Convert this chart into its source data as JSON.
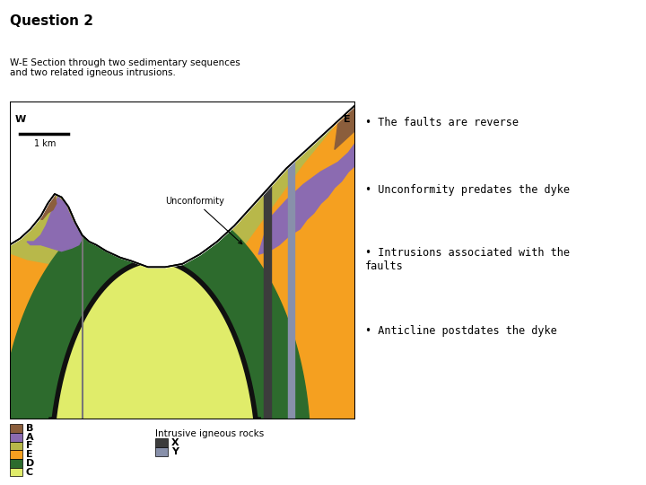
{
  "title": "Question 2",
  "subtitle_line1": "W-E Section through two sedimentary sequences",
  "subtitle_line2": "and two related igneous intrusions.",
  "bullet_points": [
    "• The faults are reverse",
    "• Unconformity predates the dyke",
    "• Intrusions associated with the\nfaults",
    "• Anticline postdates the dyke"
  ],
  "colors": {
    "B": "#8B5E3C",
    "A": "#8B6BB1",
    "F": "#B8B84A",
    "E": "#F5A020",
    "D": "#2D6B2D",
    "C": "#E0EC6A",
    "X": "#3C3C3C",
    "Y": "#8890AA",
    "background": "#FFFFFF",
    "fault_line": "#777777",
    "black_ring": "#101010"
  },
  "legend_items": [
    {
      "label": "B",
      "color": "#8B5E3C"
    },
    {
      "label": "A",
      "color": "#8B6BB1"
    },
    {
      "label": "F",
      "color": "#B8B84A"
    },
    {
      "label": "E",
      "color": "#F5A020"
    },
    {
      "label": "D",
      "color": "#2D6B2D"
    },
    {
      "label": "C",
      "color": "#E0EC6A"
    }
  ],
  "intrusive_legend": [
    {
      "label": "X",
      "color": "#3C3C3C"
    },
    {
      "label": "Y",
      "color": "#8890AA"
    }
  ]
}
